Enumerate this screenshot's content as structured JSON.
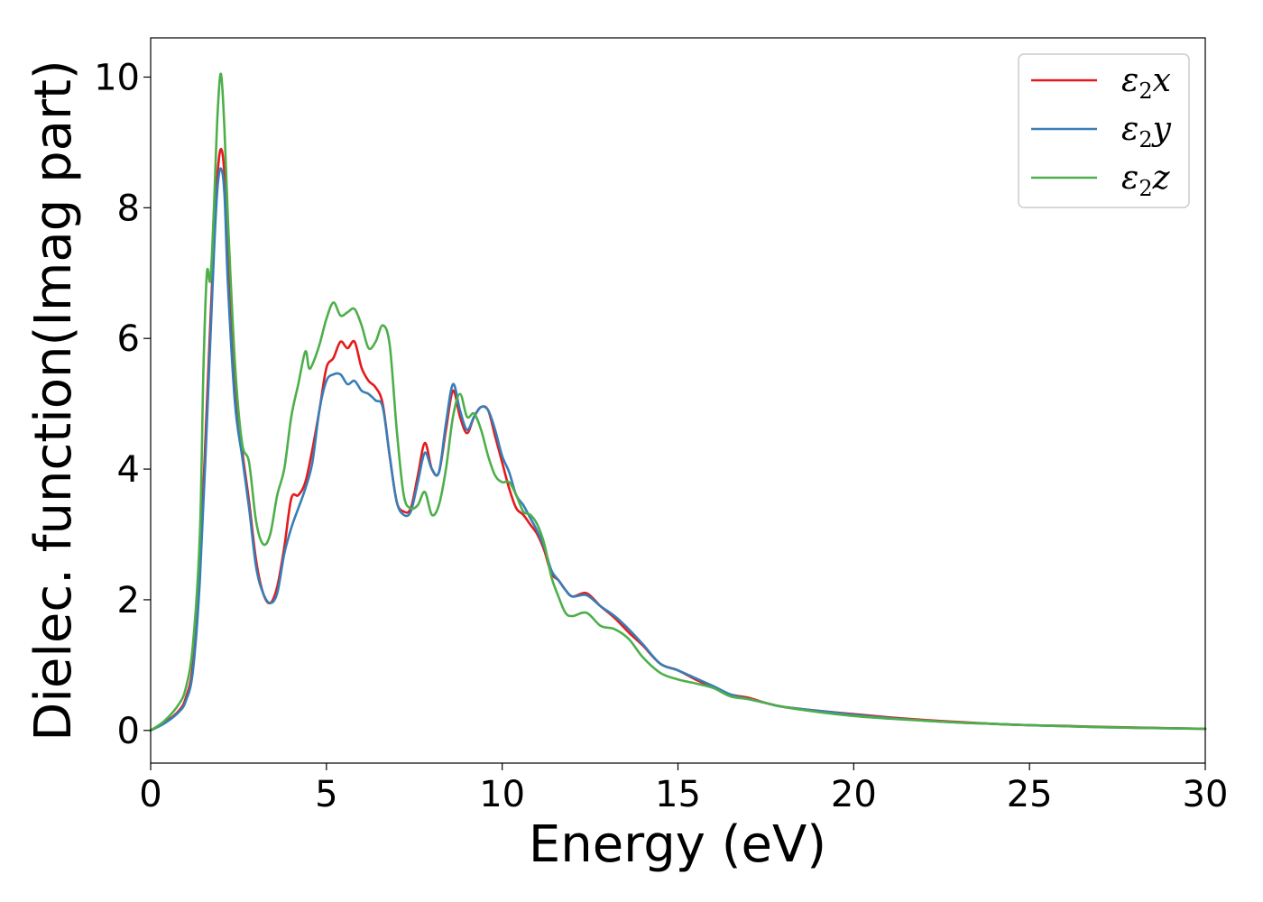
{
  "chart_data": {
    "type": "line",
    "title": "",
    "xlabel": "Energy (eV)",
    "ylabel": "Dielec. function(Imag part)",
    "xlim": [
      0,
      30
    ],
    "ylim": [
      -0.5,
      10.6
    ],
    "xticks": [
      0,
      5,
      10,
      15,
      20,
      25,
      30
    ],
    "xtick_labels": [
      "0",
      "5",
      "10",
      "15",
      "20",
      "25",
      "30"
    ],
    "yticks": [
      0,
      2,
      4,
      6,
      8,
      10
    ],
    "ytick_labels": [
      "0",
      "2",
      "4",
      "6",
      "8",
      "10"
    ],
    "grid": false,
    "legend": "top-right",
    "series": [
      {
        "name": "ε₂x",
        "legend_base": "ε",
        "legend_sub": "2",
        "legend_var": "x",
        "color": "#e41a1c",
        "x": [
          0,
          0.4,
          0.8,
          1.0,
          1.2,
          1.4,
          1.6,
          1.8,
          1.9,
          2.0,
          2.1,
          2.2,
          2.4,
          2.6,
          2.8,
          3.0,
          3.2,
          3.4,
          3.6,
          3.8,
          4.0,
          4.2,
          4.4,
          4.6,
          4.8,
          5.0,
          5.2,
          5.4,
          5.6,
          5.8,
          6.0,
          6.2,
          6.4,
          6.6,
          6.8,
          7.0,
          7.2,
          7.4,
          7.6,
          7.8,
          8.0,
          8.2,
          8.4,
          8.6,
          8.8,
          9.0,
          9.2,
          9.4,
          9.6,
          9.8,
          10.0,
          10.2,
          10.4,
          10.6,
          10.8,
          11.0,
          11.2,
          11.4,
          11.6,
          11.8,
          12.0,
          12.4,
          12.8,
          13.2,
          13.6,
          14.0,
          14.5,
          15.0,
          15.5,
          16.0,
          16.5,
          17.0,
          17.5,
          18.0,
          19.0,
          20.0,
          21.0,
          22.0,
          23.0,
          24.0,
          25.0,
          26.0,
          27.0,
          28.0,
          29.0,
          30.0
        ],
        "y": [
          0,
          0.12,
          0.3,
          0.5,
          1.0,
          2.5,
          5.0,
          7.5,
          8.5,
          8.9,
          8.5,
          7.2,
          5.3,
          4.3,
          3.5,
          2.6,
          2.1,
          1.95,
          2.2,
          2.8,
          3.55,
          3.6,
          3.8,
          4.3,
          4.9,
          5.55,
          5.7,
          5.95,
          5.85,
          5.95,
          5.55,
          5.35,
          5.25,
          5.0,
          4.2,
          3.5,
          3.35,
          3.4,
          3.9,
          4.4,
          4.0,
          3.95,
          4.6,
          5.2,
          4.8,
          4.55,
          4.8,
          4.95,
          4.9,
          4.5,
          4.1,
          3.7,
          3.4,
          3.3,
          3.15,
          3.0,
          2.75,
          2.4,
          2.3,
          2.15,
          2.05,
          2.1,
          1.9,
          1.72,
          1.5,
          1.3,
          1.02,
          0.92,
          0.78,
          0.66,
          0.55,
          0.5,
          0.42,
          0.36,
          0.3,
          0.25,
          0.2,
          0.16,
          0.13,
          0.1,
          0.08,
          0.07,
          0.055,
          0.045,
          0.035,
          0.025
        ]
      },
      {
        "name": "ε₂y",
        "legend_base": "ε",
        "legend_sub": "2",
        "legend_var": "y",
        "color": "#377eb8",
        "x": [
          0,
          0.4,
          0.8,
          1.0,
          1.2,
          1.4,
          1.6,
          1.8,
          1.9,
          2.0,
          2.1,
          2.2,
          2.4,
          2.6,
          2.8,
          3.0,
          3.2,
          3.4,
          3.6,
          3.8,
          4.0,
          4.2,
          4.4,
          4.6,
          4.8,
          5.0,
          5.2,
          5.4,
          5.6,
          5.8,
          6.0,
          6.2,
          6.4,
          6.6,
          6.8,
          7.0,
          7.2,
          7.4,
          7.6,
          7.8,
          8.0,
          8.2,
          8.4,
          8.6,
          8.8,
          9.0,
          9.2,
          9.4,
          9.6,
          9.8,
          10.0,
          10.2,
          10.4,
          10.6,
          10.8,
          11.0,
          11.2,
          11.4,
          11.6,
          11.8,
          12.0,
          12.4,
          12.8,
          13.2,
          13.6,
          14.0,
          14.5,
          15.0,
          15.5,
          16.0,
          16.5,
          17.0,
          17.5,
          18.0,
          19.0,
          20.0,
          21.0,
          22.0,
          23.0,
          24.0,
          25.0,
          26.0,
          27.0,
          28.0,
          29.0,
          30.0
        ],
        "y": [
          0,
          0.11,
          0.28,
          0.45,
          0.9,
          2.3,
          4.7,
          7.3,
          8.3,
          8.6,
          8.2,
          6.8,
          5.0,
          4.2,
          3.4,
          2.5,
          2.1,
          1.95,
          2.1,
          2.7,
          3.1,
          3.4,
          3.7,
          4.1,
          4.9,
          5.35,
          5.45,
          5.45,
          5.3,
          5.35,
          5.2,
          5.15,
          5.05,
          4.95,
          4.2,
          3.5,
          3.3,
          3.35,
          3.8,
          4.25,
          4.0,
          3.95,
          4.7,
          5.3,
          4.9,
          4.6,
          4.8,
          4.95,
          4.9,
          4.6,
          4.2,
          3.95,
          3.6,
          3.45,
          3.25,
          3.05,
          2.8,
          2.45,
          2.3,
          2.15,
          2.05,
          2.07,
          1.9,
          1.75,
          1.55,
          1.32,
          1.02,
          0.92,
          0.8,
          0.68,
          0.55,
          0.48,
          0.42,
          0.36,
          0.3,
          0.24,
          0.19,
          0.15,
          0.12,
          0.1,
          0.08,
          0.065,
          0.05,
          0.04,
          0.032,
          0.025
        ]
      },
      {
        "name": "ε₂z",
        "legend_base": "ε",
        "legend_sub": "2",
        "legend_var": "z",
        "color": "#4daf4a",
        "x": [
          0,
          0.4,
          0.8,
          1.0,
          1.2,
          1.4,
          1.5,
          1.6,
          1.7,
          1.8,
          1.9,
          2.0,
          2.1,
          2.2,
          2.4,
          2.6,
          2.8,
          3.0,
          3.2,
          3.4,
          3.6,
          3.8,
          4.0,
          4.2,
          4.4,
          4.5,
          4.6,
          4.8,
          5.0,
          5.2,
          5.4,
          5.6,
          5.8,
          6.0,
          6.2,
          6.4,
          6.6,
          6.8,
          7.0,
          7.2,
          7.4,
          7.6,
          7.8,
          8.0,
          8.2,
          8.4,
          8.6,
          8.8,
          9.0,
          9.2,
          9.4,
          9.6,
          9.8,
          10.0,
          10.2,
          10.4,
          10.6,
          10.8,
          11.0,
          11.2,
          11.4,
          11.6,
          11.8,
          12.0,
          12.4,
          12.8,
          13.2,
          13.6,
          14.0,
          14.5,
          15.0,
          15.5,
          16.0,
          16.5,
          17.0,
          17.5,
          18.0,
          19.0,
          20.0,
          21.0,
          22.0,
          23.0,
          24.0,
          25.0,
          26.0,
          27.0,
          28.0,
          29.0,
          30.0
        ],
        "y": [
          0,
          0.15,
          0.4,
          0.65,
          1.3,
          3.0,
          5.5,
          7.0,
          6.9,
          8.0,
          9.4,
          10.05,
          9.2,
          7.8,
          5.6,
          4.4,
          4.1,
          3.2,
          2.85,
          3.0,
          3.6,
          4.0,
          4.8,
          5.3,
          5.8,
          5.55,
          5.6,
          5.9,
          6.3,
          6.55,
          6.35,
          6.4,
          6.45,
          6.2,
          5.85,
          5.95,
          6.2,
          5.9,
          4.6,
          3.6,
          3.4,
          3.45,
          3.65,
          3.3,
          3.45,
          4.0,
          4.8,
          5.15,
          4.8,
          4.85,
          4.6,
          4.2,
          3.9,
          3.8,
          3.8,
          3.6,
          3.35,
          3.3,
          3.15,
          2.85,
          2.35,
          2.05,
          1.8,
          1.75,
          1.8,
          1.6,
          1.55,
          1.4,
          1.12,
          0.88,
          0.78,
          0.72,
          0.65,
          0.52,
          0.48,
          0.42,
          0.36,
          0.28,
          0.22,
          0.18,
          0.15,
          0.12,
          0.1,
          0.08,
          0.065,
          0.05,
          0.04,
          0.032,
          0.025
        ]
      }
    ]
  }
}
